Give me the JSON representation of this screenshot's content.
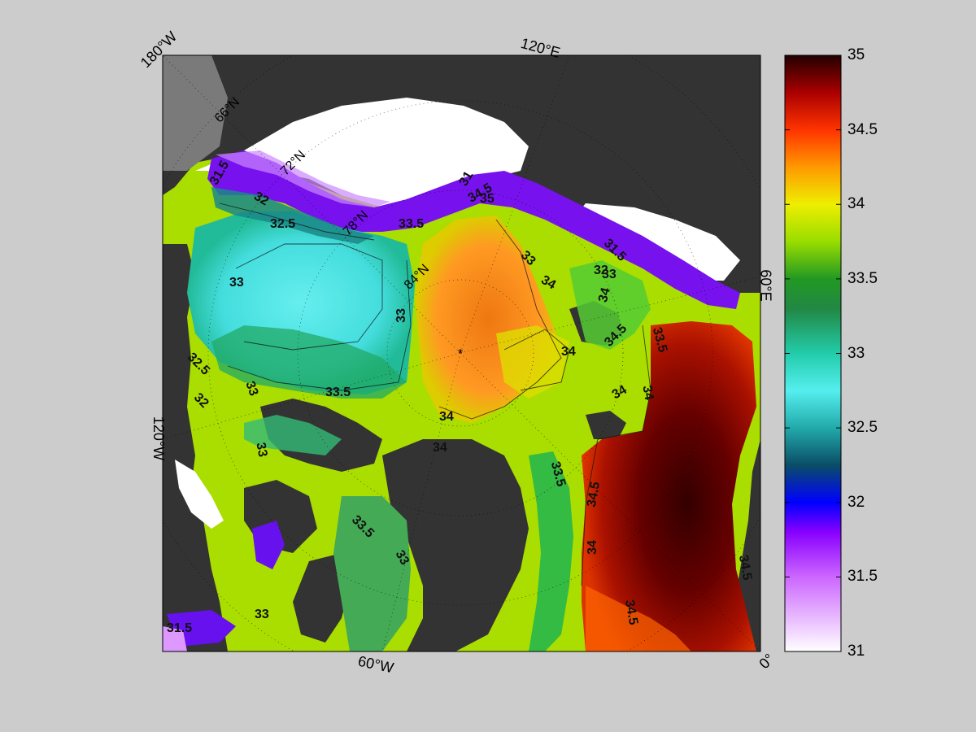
{
  "map": {
    "colors": {
      "land": "#333333",
      "ice": "#ffffff",
      "shelf_grey": "#7a7a7a",
      "background": "#cccccc"
    },
    "edge_labels": {
      "top_left": "180°W",
      "top_center": "120°E",
      "right_middle": "60°E",
      "bottom_right": "0°",
      "bottom_center": "60°W",
      "left_middle": "120°W"
    },
    "grid_labels": [
      "66°N",
      "72°N",
      "78°N",
      "84°N"
    ],
    "contour_labels": [
      "31.5",
      "32",
      "32.5",
      "33",
      "33.5",
      "34",
      "34.5",
      "35",
      "31",
      "33.5",
      "33",
      "33",
      "34",
      "34",
      "34",
      "34.5",
      "34",
      "34",
      "33.5",
      "34.5",
      "34",
      "33.5",
      "34.5",
      "34.5",
      "33",
      "33",
      "33",
      "31.5",
      "33",
      "32.5",
      "32",
      "31.5",
      "32",
      "33",
      "34",
      "33.5"
    ]
  },
  "colorbar": {
    "min": 31,
    "max": 35,
    "ticks": [
      "35",
      "34.5",
      "34",
      "33.5",
      "33",
      "32.5",
      "32",
      "31.5",
      "31"
    ],
    "stops": [
      {
        "v": 31.0,
        "c": "#ffffff"
      },
      {
        "v": 31.5,
        "c": "#cc66ff"
      },
      {
        "v": 31.8,
        "c": "#8800ff"
      },
      {
        "v": 32.0,
        "c": "#0000ff"
      },
      {
        "v": 32.25,
        "c": "#0a4d66"
      },
      {
        "v": 32.5,
        "c": "#22aaaa"
      },
      {
        "v": 32.75,
        "c": "#55eeee"
      },
      {
        "v": 33.0,
        "c": "#22ccaa"
      },
      {
        "v": 33.3,
        "c": "#228844"
      },
      {
        "v": 33.5,
        "c": "#229922"
      },
      {
        "v": 33.75,
        "c": "#99dd00"
      },
      {
        "v": 34.0,
        "c": "#eeee00"
      },
      {
        "v": 34.25,
        "c": "#ff9900"
      },
      {
        "v": 34.5,
        "c": "#ff3300"
      },
      {
        "v": 34.75,
        "c": "#aa0000"
      },
      {
        "v": 35.0,
        "c": "#220000"
      }
    ]
  }
}
